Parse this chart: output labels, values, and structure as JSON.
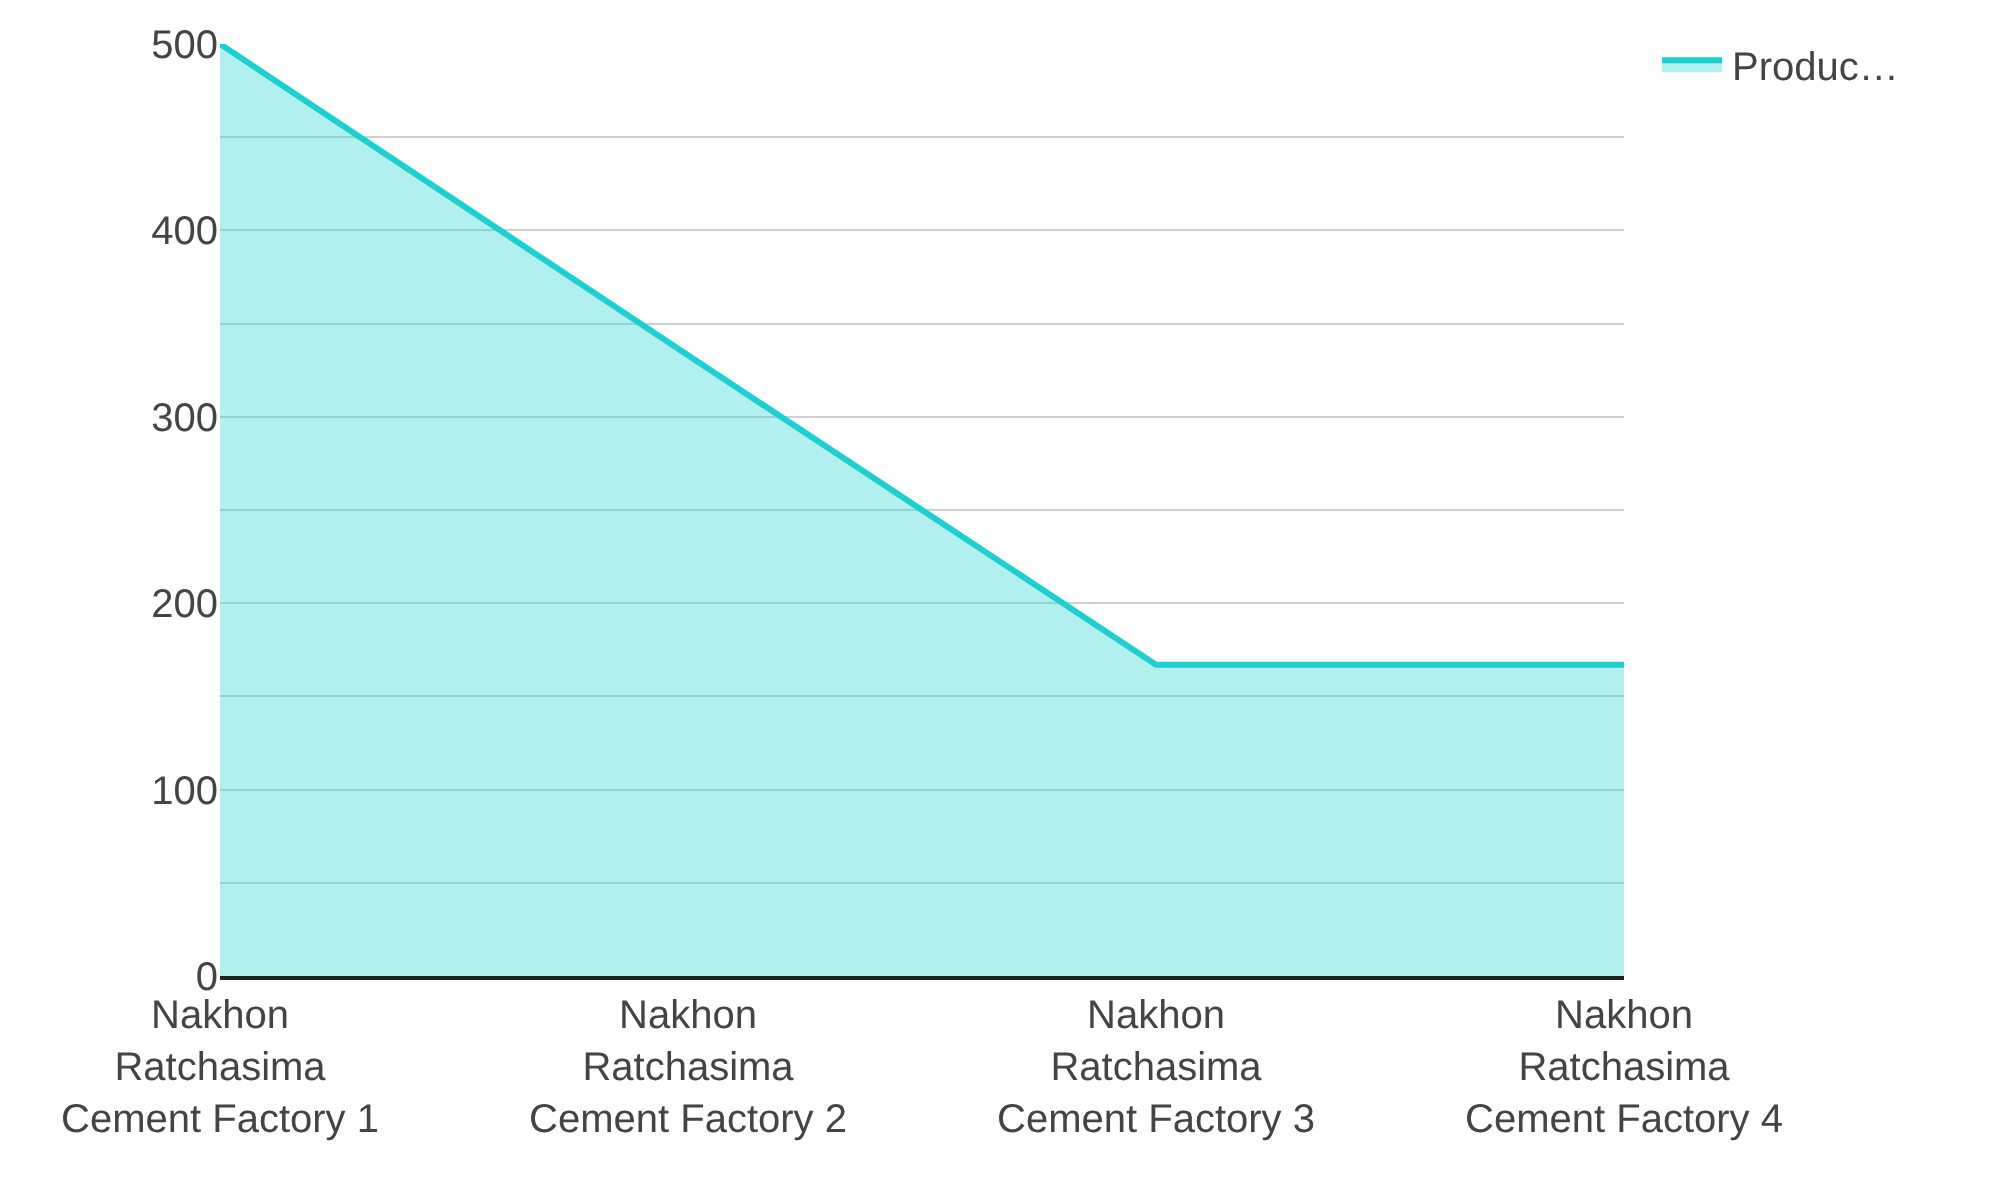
{
  "chart_data": {
    "type": "area",
    "categories": [
      "Nakhon\nRatchasima\nCement Factory 1",
      "Nakhon\nRatchasima\nCement Factory 2",
      "Nakhon\nRatchasima\nCement Factory 3",
      "Nakhon\nRatchasima\nCement Factory 4"
    ],
    "series": [
      {
        "name": "Produc…",
        "color": "#1ccfd0",
        "values": [
          500,
          333,
          167,
          167
        ]
      }
    ],
    "ylim": [
      0,
      500
    ],
    "yticks": [
      0,
      {
        "value": 50,
        "label": null
      },
      100,
      {
        "value": 150,
        "label": null
      },
      200,
      {
        "value": 250,
        "label": null
      },
      300,
      {
        "value": 350,
        "label": null
      },
      400,
      {
        "value": 450,
        "label": null
      },
      500
    ],
    "grid": "y",
    "legend": "top right",
    "marker": "none",
    "line_style": "solid"
  }
}
